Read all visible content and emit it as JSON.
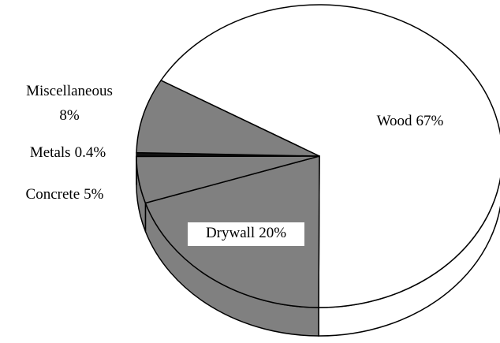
{
  "chart_data": {
    "type": "pie3d",
    "categories": [
      "Wood",
      "Drywall",
      "Concrete",
      "Metals",
      "Miscellaneous"
    ],
    "values": [
      67,
      20,
      5,
      0.4,
      8
    ],
    "value_labels": [
      "67%",
      "20%",
      "5%",
      "0.4%",
      "8%"
    ],
    "colors": [
      "#ffffff",
      "#808080",
      "#808080",
      "#111111",
      "#808080"
    ]
  }
}
